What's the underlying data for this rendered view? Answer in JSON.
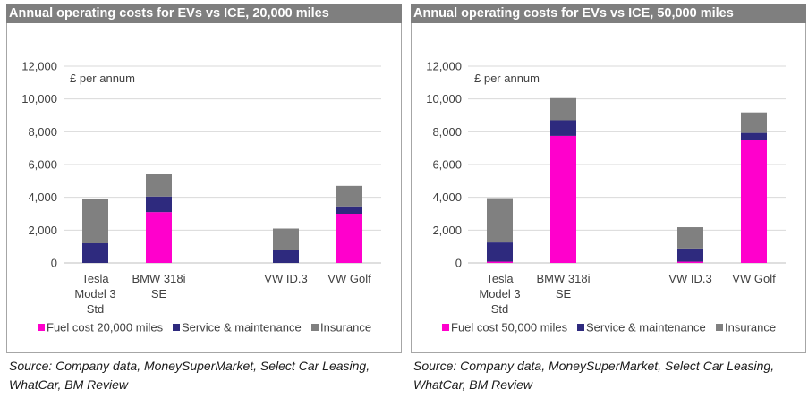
{
  "chart_data": [
    {
      "type": "bar",
      "stacked": true,
      "title": "Annual operating costs for EVs vs ICE, 20,000 miles",
      "unit_label": "£ per annum",
      "categories": [
        [
          "Tesla",
          "Model 3",
          "Std"
        ],
        [
          "BMW 318i",
          "SE"
        ],
        [
          ""
        ],
        [
          "VW ID.3"
        ],
        [
          "VW Golf"
        ]
      ],
      "series": [
        {
          "name": "Fuel cost 20,000 miles",
          "color": "#ff00cc",
          "values": [
            0,
            3100,
            null,
            0,
            3000
          ]
        },
        {
          "name": "Service & maintenance",
          "color": "#2e2a7e",
          "values": [
            1200,
            950,
            null,
            800,
            450
          ]
        },
        {
          "name": "Insurance",
          "color": "#808080",
          "values": [
            2700,
            1350,
            null,
            1300,
            1250
          ]
        }
      ],
      "yticks": [
        "0",
        "2,000",
        "4,000",
        "6,000",
        "8,000",
        "10,000",
        "12,000"
      ],
      "ylim": [
        0,
        12000
      ],
      "grid": true,
      "legend": "bottom"
    },
    {
      "type": "bar",
      "stacked": true,
      "title": "Annual operating costs for EVs vs ICE, 50,000 miles",
      "unit_label": "£ per annum",
      "categories": [
        [
          "Tesla",
          "Model 3",
          "Std"
        ],
        [
          "BMW 318i",
          "SE"
        ],
        [
          ""
        ],
        [
          "VW ID.3"
        ],
        [
          "VW Golf"
        ]
      ],
      "series": [
        {
          "name": "Fuel cost 50,000 miles",
          "color": "#ff00cc",
          "values": [
            80,
            7750,
            null,
            80,
            7480
          ]
        },
        {
          "name": "Service & maintenance",
          "color": "#2e2a7e",
          "values": [
            1170,
            950,
            null,
            800,
            450
          ]
        },
        {
          "name": "Insurance",
          "color": "#808080",
          "values": [
            2700,
            1350,
            null,
            1300,
            1250
          ]
        }
      ],
      "yticks": [
        "0",
        "2,000",
        "4,000",
        "6,000",
        "8,000",
        "10,000",
        "12,000"
      ],
      "ylim": [
        0,
        12000
      ],
      "grid": true,
      "legend": "bottom"
    }
  ],
  "sources": [
    [
      "Source: Company data, MoneySuperMarket, Select Car Leasing,",
      "WhatCar, BM Review"
    ],
    [
      "Source: Company data, MoneySuperMarket, Select Car Leasing,",
      "WhatCar, BM Review"
    ]
  ]
}
